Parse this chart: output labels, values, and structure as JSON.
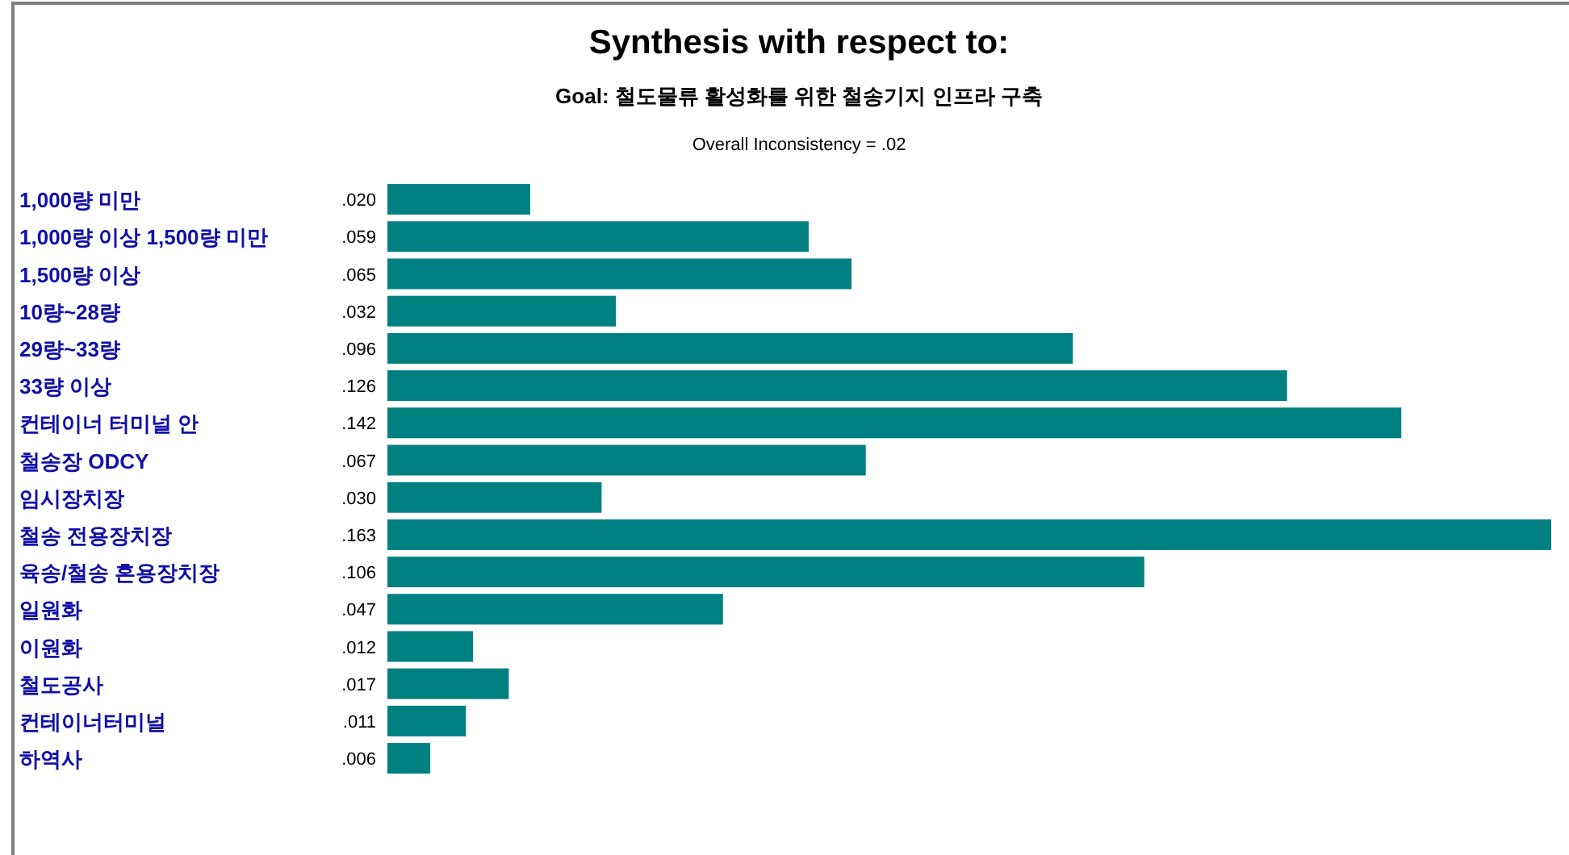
{
  "chart_data": {
    "type": "bar",
    "orientation": "horizontal",
    "title": "Synthesis with respect to:",
    "subtitle": "Goal: 철도물류 활성화를 위한 철송기지 인프라 구축",
    "annotations": [
      "Overall Inconsistency = .02"
    ],
    "categories": [
      "1,000량 미만",
      "1,000량 이상 1,500량 미만",
      "1,500량 이상",
      "10량~28량",
      "29량~33량",
      "33량 이상",
      "컨테이너 터미널 안",
      "철송장 ODCY",
      "임시장치장",
      "철송 전용장치장",
      "육송/철송 혼용장치장",
      "일원화",
      "이원화",
      "철도공사",
      "컨테이너터미널",
      "하역사"
    ],
    "values": [
      0.02,
      0.059,
      0.065,
      0.032,
      0.096,
      0.126,
      0.142,
      0.067,
      0.03,
      0.163,
      0.106,
      0.047,
      0.012,
      0.017,
      0.011,
      0.006
    ],
    "value_labels": [
      ".020",
      ".059",
      ".065",
      ".032",
      ".096",
      ".126",
      ".142",
      ".067",
      ".030",
      ".163",
      ".106",
      ".047",
      ".012",
      ".017",
      ".011",
      ".006"
    ],
    "color": "#008080"
  }
}
